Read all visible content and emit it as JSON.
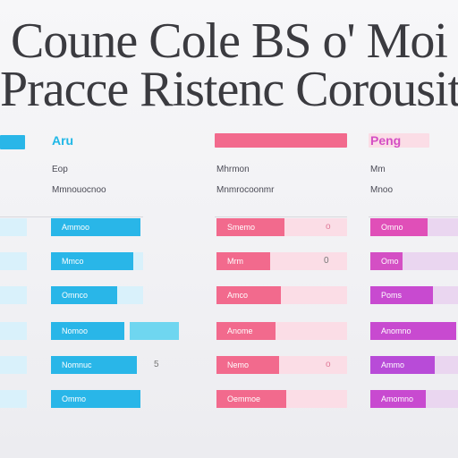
{
  "title": {
    "line1": "Coune Cole BS o' Moi",
    "line2": "Pracce Ristenc Corousit"
  },
  "columns": [
    {
      "header": "Aru",
      "header_color": "#1fb7e6",
      "meta1": "Eop",
      "meta2": "Mmnouocnoo",
      "rows": [
        {
          "label": "Ammoo",
          "value": ""
        },
        {
          "label": "Mmco",
          "value": ""
        },
        {
          "label": "Omnco",
          "value": ""
        },
        {
          "label": "Nomoo",
          "value": ""
        },
        {
          "label": "Nomnuc",
          "value": "5"
        },
        {
          "label": "Ommo",
          "value": ""
        }
      ]
    },
    {
      "header": "",
      "header_color": "#f25c8c",
      "meta1": "Mhrmon",
      "meta2": "Mnmrocoonmr",
      "rows": [
        {
          "label": "Smemo",
          "value": "o"
        },
        {
          "label": "Mrm",
          "value": "0"
        },
        {
          "label": "Amco",
          "value": ""
        },
        {
          "label": "Anome",
          "value": ""
        },
        {
          "label": "Nemo",
          "value": "o"
        },
        {
          "label": "Oemmoe",
          "value": ""
        }
      ]
    },
    {
      "header": "Peng",
      "header_color": "#d44fc4",
      "meta1": "Mm",
      "meta2": "Mnoo",
      "rows": [
        {
          "label": "Omno",
          "value": ""
        },
        {
          "label": "Omo",
          "value": ""
        },
        {
          "label": "Poms",
          "value": ""
        },
        {
          "label": "Anomno",
          "value": ""
        },
        {
          "label": "Ammo",
          "value": ""
        },
        {
          "label": "Amomno",
          "value": ""
        }
      ]
    }
  ],
  "colors": {
    "cyan": "#29b6e8",
    "cyan_light": "#d9f1fb",
    "pink": "#f26a8d",
    "pink_light": "#fbdde6",
    "purple": "#c84ad0",
    "purple_light": "#ead6f0",
    "title": "#3b3b40"
  }
}
